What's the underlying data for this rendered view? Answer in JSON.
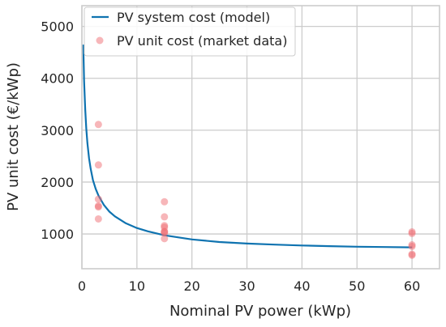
{
  "chart_data": {
    "type": "scatter",
    "xlabel": "Nominal PV power (kWp)",
    "ylabel": "PV unit cost (€/kWp)",
    "xlim": [
      0,
      65
    ],
    "ylim": [
      330,
      5400
    ],
    "xticks": [
      0,
      10,
      20,
      30,
      40,
      50,
      60
    ],
    "yticks": [
      1000,
      2000,
      3000,
      4000,
      5000
    ],
    "xtick_labels": [
      "0",
      "10",
      "20",
      "30",
      "40",
      "50",
      "60"
    ],
    "ytick_labels": [
      "1000",
      "2000",
      "3000",
      "4000",
      "5000"
    ],
    "grid": true,
    "legend": "top-left",
    "legend_entries": [
      "PV system cost (model)",
      "PV unit cost (market data)"
    ],
    "series": [
      {
        "name": "PV system cost (model)",
        "kind": "line",
        "color": "#0f73b0",
        "x": [
          0.25,
          0.4,
          0.6,
          0.8,
          1,
          1.3,
          1.6,
          2,
          2.5,
          3,
          4,
          5,
          6,
          8,
          10,
          12,
          15,
          20,
          25,
          30,
          35,
          40,
          45,
          50,
          55,
          60
        ],
        "y": [
          4650,
          3950,
          3400,
          3030,
          2750,
          2460,
          2250,
          2040,
          1870,
          1740,
          1560,
          1430,
          1340,
          1205,
          1115,
          1050,
          975,
          895,
          845,
          815,
          795,
          778,
          765,
          755,
          748,
          742
        ]
      },
      {
        "name": "PV unit cost (market data)",
        "kind": "scatter",
        "color": "#ef6e73",
        "x": [
          3,
          3,
          3,
          3,
          3,
          3,
          15,
          15,
          15,
          15,
          15,
          15,
          15,
          15,
          60,
          60,
          60,
          60,
          60,
          60
        ],
        "y": [
          3110,
          2330,
          1670,
          1540,
          1520,
          1290,
          1620,
          1330,
          1160,
          1050,
          1040,
          1020,
          910,
          1130,
          1040,
          1010,
          790,
          760,
          610,
          590
        ]
      }
    ]
  }
}
